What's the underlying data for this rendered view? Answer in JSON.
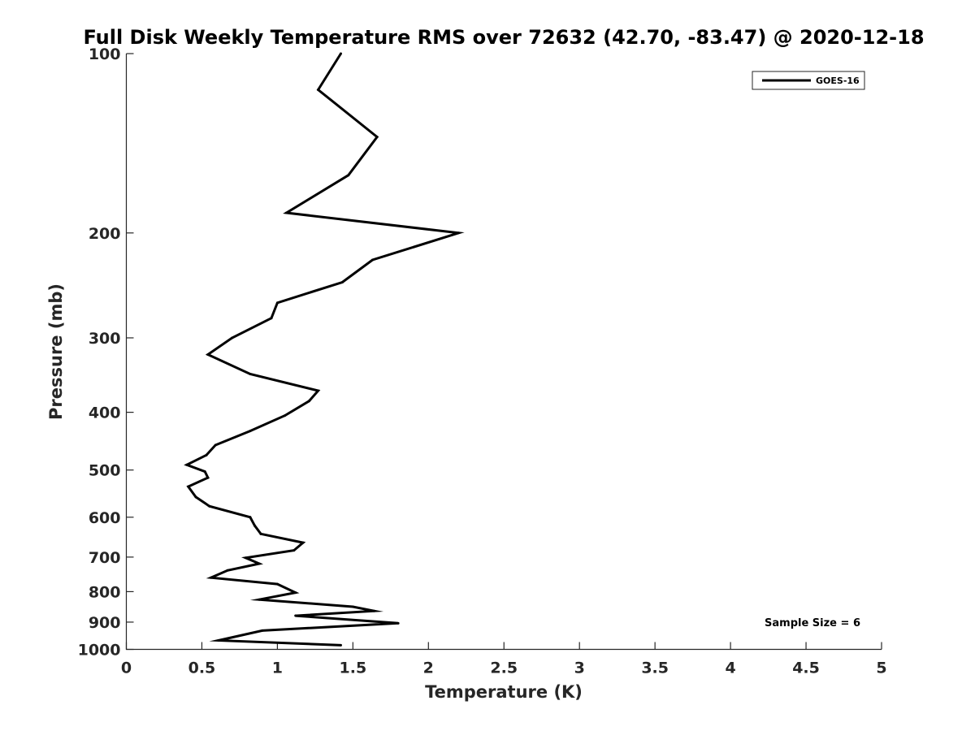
{
  "chart_data": {
    "type": "line",
    "title": "Full Disk Weekly Temperature RMS over 72632 (42.70, -83.47) @ 2020-12-18",
    "xlabel": "Temperature (K)",
    "ylabel": "Pressure (mb)",
    "xlim": [
      0,
      5
    ],
    "ylim": [
      100,
      1000
    ],
    "y_scale": "log",
    "y_reversed": true,
    "x_ticks": [
      "0",
      "0.5",
      "1",
      "1.5",
      "2",
      "2.5",
      "3",
      "3.5",
      "4",
      "4.5",
      "5"
    ],
    "y_ticks": [
      "100",
      "200",
      "300",
      "400",
      "500",
      "600",
      "700",
      "800",
      "900",
      "1000"
    ],
    "grid": false,
    "legend_position": "top-right",
    "annotation": "Sample Size = 6",
    "series": [
      {
        "name": "GOES-16",
        "color": "#000000",
        "x": [
          1.42,
          1.27,
          1.66,
          1.47,
          1.06,
          2.2,
          1.63,
          1.43,
          1.0,
          0.96,
          0.7,
          0.54,
          0.82,
          1.27,
          1.21,
          1.05,
          0.82,
          0.59,
          0.53,
          0.4,
          0.52,
          0.54,
          0.41,
          0.46,
          0.55,
          0.82,
          0.85,
          0.89,
          1.17,
          1.11,
          0.79,
          0.88,
          0.67,
          0.56,
          1.0,
          1.12,
          0.88,
          1.5,
          1.64,
          1.12,
          1.8,
          0.9,
          0.61,
          1.42
        ],
        "y": [
          100,
          115,
          138,
          160,
          185,
          200,
          222,
          242,
          262,
          278,
          300,
          320,
          345,
          368,
          383,
          405,
          430,
          454,
          472,
          490,
          503,
          515,
          533,
          555,
          575,
          600,
          620,
          640,
          662,
          682,
          702,
          718,
          737,
          758,
          777,
          803,
          825,
          848,
          862,
          878,
          904,
          930,
          966,
          984
        ]
      }
    ]
  }
}
